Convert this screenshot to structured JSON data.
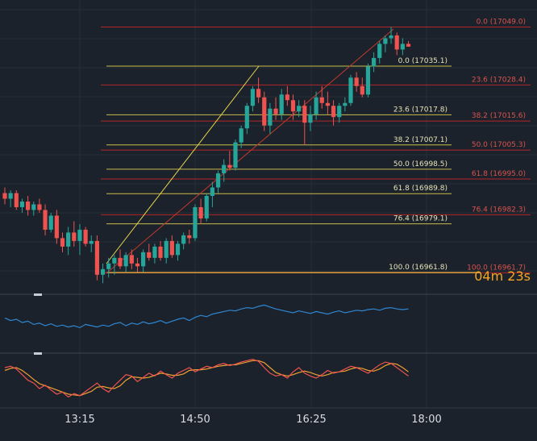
{
  "colors": {
    "background": "#1b222b",
    "up_candle": "#26a69a",
    "down_candle": "#ef5350",
    "fib_primary": "#c9b94a",
    "fib_secondary": "#b3262b",
    "trend_primary": "#e8d44d",
    "trend_secondary": "#c0392b",
    "indicator_line": "#2f86d1",
    "stoch_k": "#ef5350",
    "stoch_d": "#f0a030",
    "countdown": "#f5a623",
    "text": "#d8dde3"
  },
  "countdown": {
    "minutes": "04",
    "min_unit": "m",
    "seconds": "23",
    "sec_unit": "s"
  },
  "time_axis": [
    "13:15",
    "14:50",
    "16:25",
    "18:00"
  ],
  "chart_data": {
    "type": "candlestick",
    "price_range": [
      16950,
      17052
    ],
    "fib_primary": [
      {
        "label": "0.0 (17035.1)",
        "price": 17035.1
      },
      {
        "label": "23.6 (17017.8)",
        "price": 17017.8
      },
      {
        "label": "38.2 (17007.1)",
        "price": 17007.1
      },
      {
        "label": "50.0 (16998.5)",
        "price": 16998.5
      },
      {
        "label": "61.8 (16989.8)",
        "price": 16989.8
      },
      {
        "label": "76.4 (16979.1)",
        "price": 16979.1
      },
      {
        "label": "100.0 (16961.8)",
        "price": 16961.8
      }
    ],
    "fib_secondary": [
      {
        "label": "0.0 (17049.0)",
        "price": 17049.0
      },
      {
        "label": "23.6 (17028.4)",
        "price": 17028.4
      },
      {
        "label": "38.2 (17015.6)",
        "price": 17015.6
      },
      {
        "label": "50.0 (17005.3)",
        "price": 17005.3
      },
      {
        "label": "61.8 (16995.0)",
        "price": 16995.0
      },
      {
        "label": "76.4 (16982.3)",
        "price": 16982.3
      },
      {
        "label": "100.0 (16961.7)",
        "price": 16961.7
      }
    ],
    "candles": [
      [
        16990,
        16992,
        16986,
        16988
      ],
      [
        16988,
        16991,
        16985,
        16990
      ],
      [
        16990,
        16991,
        16984,
        16985
      ],
      [
        16985,
        16988,
        16983,
        16987
      ],
      [
        16987,
        16989,
        16982,
        16984
      ],
      [
        16984,
        16987,
        16982,
        16986
      ],
      [
        16986,
        16988,
        16983,
        16984
      ],
      [
        16984,
        16986,
        16975,
        16977
      ],
      [
        16977,
        16983,
        16976,
        16982
      ],
      [
        16982,
        16984,
        16972,
        16974
      ],
      [
        16974,
        16976,
        16969,
        16971
      ],
      [
        16971,
        16978,
        16968,
        16976
      ],
      [
        16976,
        16980,
        16971,
        16973
      ],
      [
        16973,
        16979,
        16968,
        16977
      ],
      [
        16977,
        16978,
        16971,
        16972
      ],
      [
        16972,
        16975,
        16969,
        16973
      ],
      [
        16973,
        16975,
        16959,
        16961
      ],
      [
        16961,
        16965,
        16958,
        16963
      ],
      [
        16963,
        16967,
        16960,
        16965
      ],
      [
        16965,
        16968,
        16961,
        16967
      ],
      [
        16967,
        16970,
        16963,
        16964
      ],
      [
        16964,
        16969,
        16962,
        16968
      ],
      [
        16968,
        16970,
        16963,
        16965
      ],
      [
        16965,
        16967,
        16962,
        16964
      ],
      [
        16964,
        16970,
        16962,
        16969
      ],
      [
        16969,
        16972,
        16966,
        16967
      ],
      [
        16967,
        16972,
        16965,
        16971
      ],
      [
        16971,
        16973,
        16966,
        16967
      ],
      [
        16967,
        16974,
        16965,
        16973
      ],
      [
        16973,
        16975,
        16967,
        16968
      ],
      [
        16968,
        16973,
        16966,
        16972
      ],
      [
        16972,
        16976,
        16970,
        16975
      ],
      [
        16975,
        16977,
        16972,
        16974
      ],
      [
        16974,
        16986,
        16973,
        16985
      ],
      [
        16985,
        16988,
        16979,
        16981
      ],
      [
        16981,
        16990,
        16980,
        16989
      ],
      [
        16989,
        16994,
        16985,
        16992
      ],
      [
        16992,
        16998,
        16990,
        16997
      ],
      [
        16997,
        17002,
        16994,
        17000
      ],
      [
        17000,
        17005,
        16998,
        16999
      ],
      [
        16999,
        17009,
        16998,
        17008
      ],
      [
        17008,
        17014,
        17006,
        17013
      ],
      [
        17013,
        17022,
        17011,
        17021
      ],
      [
        17021,
        17028,
        17019,
        17027
      ],
      [
        17027,
        17031,
        17022,
        17024
      ],
      [
        17024,
        17026,
        17012,
        17014
      ],
      [
        17014,
        17022,
        17011,
        17020
      ],
      [
        17020,
        17024,
        17016,
        17018
      ],
      [
        17018,
        17027,
        17016,
        17025
      ],
      [
        17025,
        17028,
        17021,
        17023
      ],
      [
        17023,
        17025,
        17016,
        17019
      ],
      [
        17019,
        17023,
        17017,
        17021
      ],
      [
        17021,
        17023,
        17007,
        17015
      ],
      [
        17015,
        17021,
        17012,
        17018
      ],
      [
        17018,
        17026,
        17016,
        17024
      ],
      [
        17024,
        17028,
        17020,
        17022
      ],
      [
        17022,
        17026,
        17018,
        17021
      ],
      [
        17021,
        17023,
        17014,
        17017
      ],
      [
        17017,
        17022,
        17015,
        17021
      ],
      [
        17021,
        17024,
        17019,
        17022
      ],
      [
        17022,
        17032,
        17021,
        17031
      ],
      [
        17031,
        17033,
        17026,
        17028
      ],
      [
        17028,
        17031,
        17024,
        17025
      ],
      [
        17025,
        17036,
        17024,
        17035
      ],
      [
        17035,
        17040,
        17033,
        17038
      ],
      [
        17038,
        17044,
        17036,
        17043
      ],
      [
        17043,
        17046,
        17040,
        17045
      ],
      [
        17045,
        17049,
        17043,
        17046
      ],
      [
        17046,
        17047,
        17039,
        17041
      ],
      [
        17041,
        17045,
        17039,
        17043
      ],
      [
        17043,
        17044,
        17042,
        17042
      ]
    ],
    "indicator_values": [
      62,
      58,
      60,
      55,
      57,
      52,
      54,
      50,
      53,
      49,
      51,
      48,
      50,
      47,
      52,
      50,
      48,
      51,
      49,
      53,
      55,
      50,
      54,
      52,
      56,
      53,
      55,
      58,
      54,
      57,
      60,
      62,
      58,
      63,
      66,
      64,
      68,
      70,
      72,
      74,
      73,
      76,
      78,
      77,
      80,
      82,
      79,
      76,
      74,
      72,
      70,
      73,
      71,
      69,
      72,
      70,
      68,
      71,
      73,
      70,
      72,
      74,
      73,
      75,
      76,
      74,
      77,
      78,
      76,
      75,
      76
    ],
    "stoch_k": [
      70,
      72,
      68,
      60,
      52,
      48,
      40,
      45,
      38,
      32,
      35,
      28,
      33,
      30,
      36,
      42,
      48,
      40,
      35,
      44,
      52,
      60,
      58,
      50,
      56,
      62,
      58,
      65,
      60,
      55,
      62,
      66,
      70,
      64,
      68,
      72,
      70,
      74,
      76,
      73,
      75,
      78,
      80,
      82,
      79,
      70,
      62,
      58,
      60,
      55,
      64,
      70,
      62,
      58,
      55,
      60,
      66,
      62,
      64,
      68,
      72,
      70,
      66,
      62,
      68,
      74,
      78,
      76,
      70,
      64,
      58
    ],
    "stoch_d": [
      66,
      69,
      70,
      66,
      60,
      53,
      47,
      44,
      41,
      38,
      35,
      32,
      31,
      30,
      33,
      36,
      42,
      43,
      41,
      40,
      44,
      52,
      57,
      56,
      55,
      56,
      59,
      62,
      61,
      59,
      59,
      61,
      66,
      67,
      67,
      68,
      70,
      72,
      73,
      74,
      74,
      76,
      78,
      80,
      80,
      77,
      70,
      63,
      60,
      58,
      60,
      63,
      65,
      63,
      60,
      58,
      60,
      63,
      64,
      65,
      68,
      70,
      69,
      66,
      65,
      68,
      73,
      76,
      75,
      70,
      64
    ]
  }
}
